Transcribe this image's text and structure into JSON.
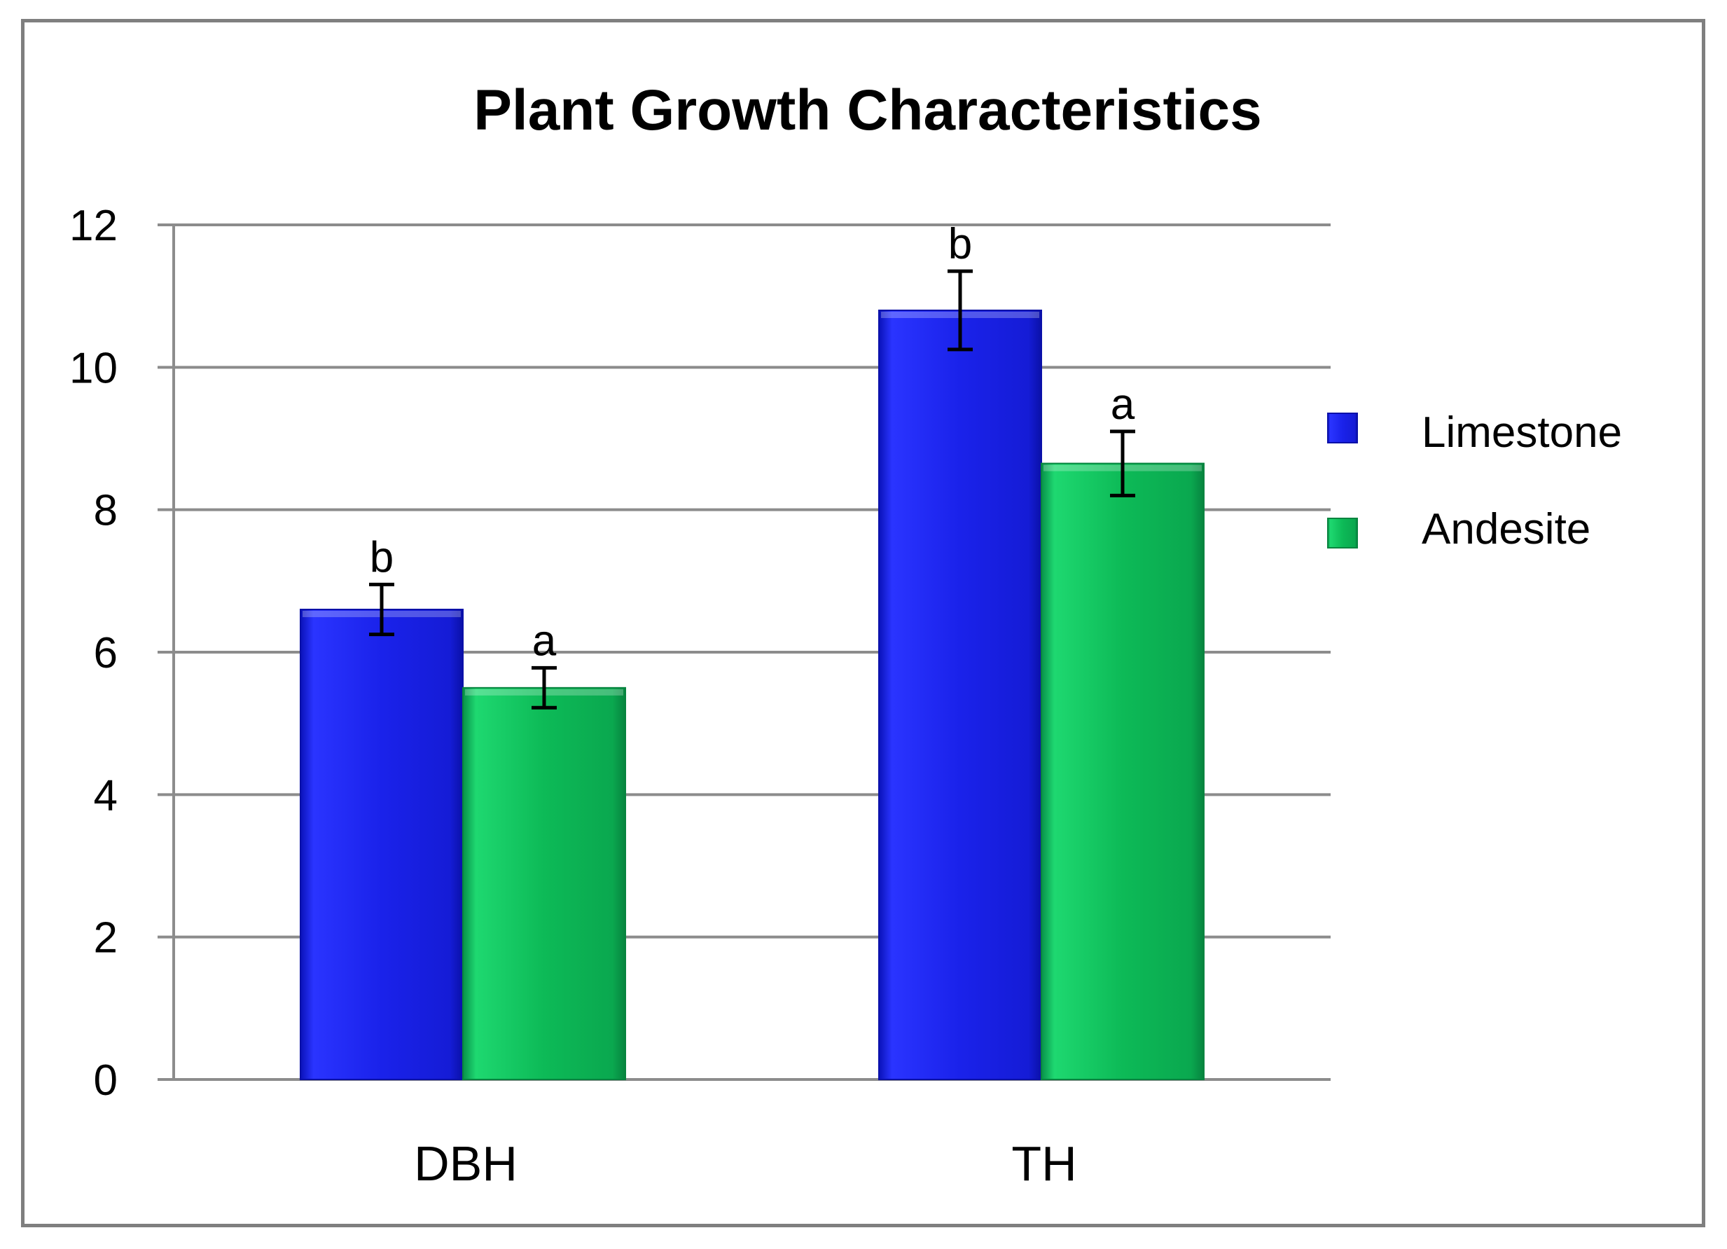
{
  "chart_data": {
    "type": "bar",
    "title": "Plant Growth Characteristics",
    "xlabel": "",
    "ylabel": "",
    "categories": [
      "DBH",
      "TH"
    ],
    "ylim": [
      0,
      12
    ],
    "yticks": [
      0,
      2,
      4,
      6,
      8,
      10,
      12
    ],
    "grid": true,
    "legend_position": "right",
    "series": [
      {
        "name": "Limestone",
        "color": "#1a22e6",
        "values": [
          6.6,
          10.8
        ],
        "errors": [
          0.35,
          0.55
        ],
        "labels": [
          "b",
          "b"
        ]
      },
      {
        "name": "Andesite",
        "color": "#0fb954",
        "values": [
          5.5,
          8.65
        ],
        "errors": [
          0.28,
          0.45
        ],
        "labels": [
          "a",
          "a"
        ]
      }
    ]
  }
}
